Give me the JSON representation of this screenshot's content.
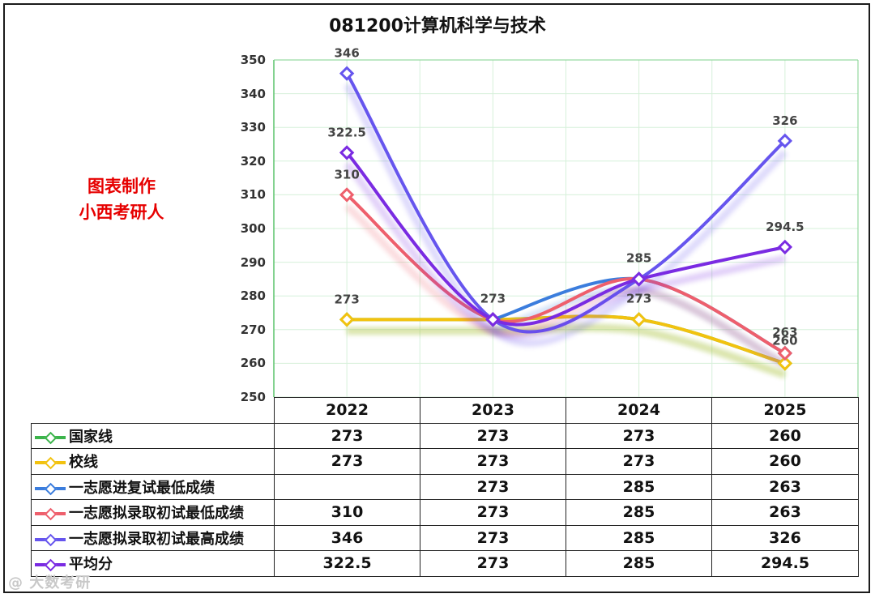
{
  "title": "081200计算机科学与技术",
  "credit": {
    "line1": "图表制作",
    "line2": "小西考研人"
  },
  "watermark": "@ 大数考研",
  "chart_data": {
    "type": "line",
    "title": "081200计算机科学与技术",
    "categories": [
      "2022",
      "2023",
      "2024",
      "2025"
    ],
    "y_ticks": [
      "350",
      "340",
      "330",
      "320",
      "310",
      "300",
      "290",
      "280",
      "270",
      "260",
      "250"
    ],
    "ylim": [
      250,
      350
    ],
    "grid": true,
    "legend": "data-table-left",
    "series": [
      {
        "name": "国家线",
        "color": "#3cb44b",
        "values": [
          273,
          273,
          273,
          260
        ],
        "labels": [
          "",
          "",
          "",
          ""
        ]
      },
      {
        "name": "校线",
        "color": "#f2c20f",
        "values": [
          273,
          273,
          273,
          260
        ],
        "labels": [
          "273",
          "273",
          "273",
          "260"
        ]
      },
      {
        "name": "一志愿进复试最低成绩",
        "color": "#3b7ddd",
        "values": [
          null,
          273,
          285,
          263
        ],
        "labels": [
          "",
          "",
          "",
          ""
        ]
      },
      {
        "name": "一志愿拟录取初试最低成绩",
        "color": "#ee5f6c",
        "values": [
          310,
          273,
          285,
          263
        ],
        "labels": [
          "310",
          "",
          "",
          "263"
        ]
      },
      {
        "name": "一志愿拟录取初试最高成绩",
        "color": "#6655ee",
        "values": [
          346,
          273,
          285,
          326
        ],
        "labels": [
          "346",
          "",
          "285",
          "326"
        ]
      },
      {
        "name": "平均分",
        "color": "#7a2be2",
        "values": [
          322.5,
          273,
          285,
          294.5
        ],
        "labels": [
          "322.5",
          "",
          "",
          "294.5"
        ]
      }
    ],
    "table": {
      "header": [
        "2022",
        "2023",
        "2024",
        "2025"
      ],
      "rows": [
        [
          "273",
          "273",
          "273",
          "260"
        ],
        [
          "273",
          "273",
          "273",
          "260"
        ],
        [
          "",
          "273",
          "285",
          "263"
        ],
        [
          "310",
          "273",
          "285",
          "263"
        ],
        [
          "346",
          "273",
          "285",
          "326"
        ],
        [
          "322.5",
          "273",
          "285",
          "294.5"
        ]
      ]
    }
  }
}
